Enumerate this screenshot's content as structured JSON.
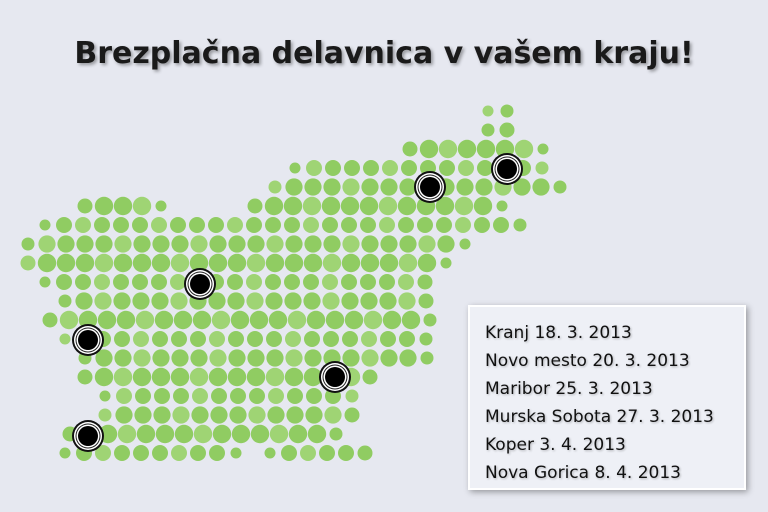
{
  "title": "Brezplačna delavnica v vašem kraju!",
  "events": [
    "Kranj 18. 3. 2013",
    "Novo mesto 20. 3. 2013",
    "Maribor 25. 3. 2013",
    "Murska Sobota 27. 3. 2013",
    "Koper 3. 4. 2013",
    "Nova Gorica 8. 4. 2013"
  ]
}
